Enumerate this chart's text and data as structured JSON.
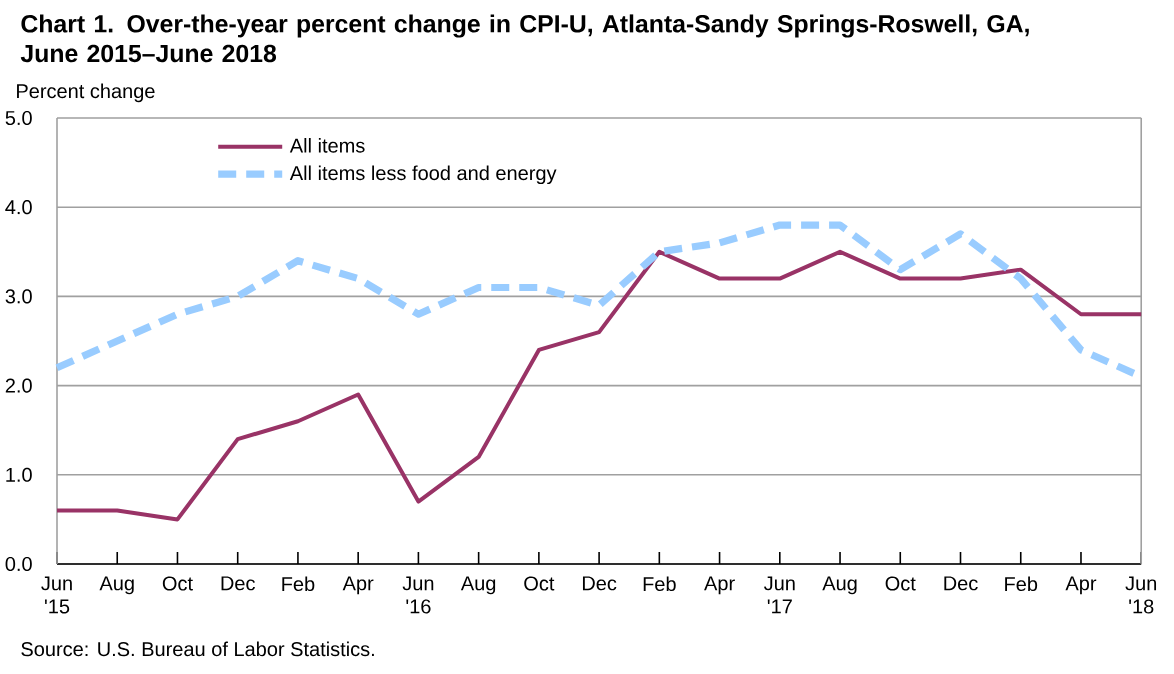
{
  "chart_data": {
    "type": "line",
    "title": "Chart 1. Over-the-year percent change in CPI-U, Atlanta-Sandy Springs-Roswell, GA, June 2015–June 2018",
    "ylabel": "Percent change",
    "annotations": [
      "Source: U.S. Bureau of Labor Statistics."
    ],
    "categories": [
      "Jun '15",
      "Aug",
      "Oct",
      "Dec",
      "Feb",
      "Apr",
      "Jun '16",
      "Aug",
      "Oct",
      "Dec",
      "Feb",
      "Apr",
      "Jun '17",
      "Aug",
      "Oct",
      "Dec",
      "Feb",
      "Apr",
      "Jun '18"
    ],
    "series": [
      {
        "name": "All items",
        "color": "#993366",
        "line_style": "solid",
        "values": [
          0.6,
          0.6,
          0.5,
          1.4,
          1.6,
          1.9,
          0.7,
          1.2,
          2.4,
          2.6,
          3.5,
          3.2,
          3.2,
          3.5,
          3.2,
          3.2,
          3.3,
          2.8,
          2.8
        ]
      },
      {
        "name": "All items less food and energy",
        "color": "#99ccff",
        "line_style": "dashed",
        "values": [
          2.2,
          2.5,
          2.8,
          3.0,
          3.4,
          3.2,
          2.8,
          3.1,
          3.1,
          2.9,
          3.5,
          3.6,
          3.8,
          3.8,
          3.3,
          3.7,
          3.2,
          2.4,
          2.1
        ]
      }
    ],
    "ylim": [
      0,
      5
    ],
    "yticks": [
      {
        "value": 0,
        "label": "0.0"
      },
      {
        "value": 1,
        "label": "1.0"
      },
      {
        "value": 2,
        "label": "2.0"
      },
      {
        "value": 3,
        "label": "3.0"
      },
      {
        "value": 4,
        "label": "4.0"
      },
      {
        "value": 5,
        "label": "5.0"
      }
    ],
    "grid": "y",
    "legend": "top left"
  }
}
